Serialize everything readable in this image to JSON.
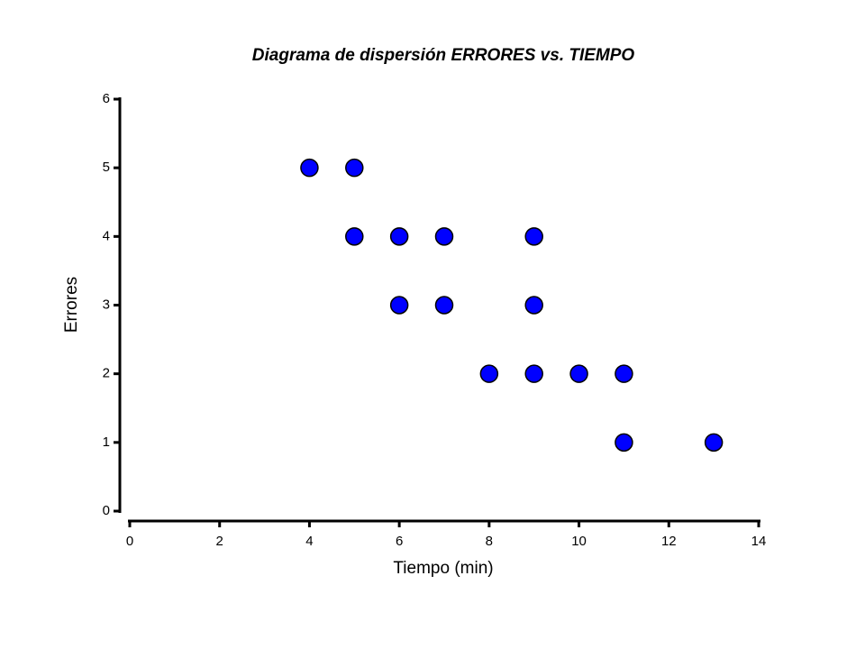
{
  "chart_data": {
    "type": "scatter",
    "title": "Diagrama de dispersión ERRORES vs. TIEMPO",
    "x_label": "Tiempo (min)",
    "y_label": "Errores",
    "series": [
      {
        "name": "Errores",
        "color": "#0000ff",
        "x": [
          4,
          5,
          5,
          6,
          7,
          9,
          6,
          7,
          9,
          8,
          9,
          10,
          11,
          11,
          13
        ],
        "values": [
          5,
          5,
          4,
          4,
          4,
          4,
          3,
          3,
          3,
          2,
          2,
          2,
          2,
          1,
          1
        ]
      }
    ],
    "xlim": [
      0,
      14
    ],
    "xticks": [
      0,
      2,
      4,
      6,
      8,
      10,
      12,
      14
    ],
    "ylim": [
      0,
      6
    ],
    "yticks": [
      0,
      1,
      2,
      3,
      4,
      5,
      6
    ]
  }
}
